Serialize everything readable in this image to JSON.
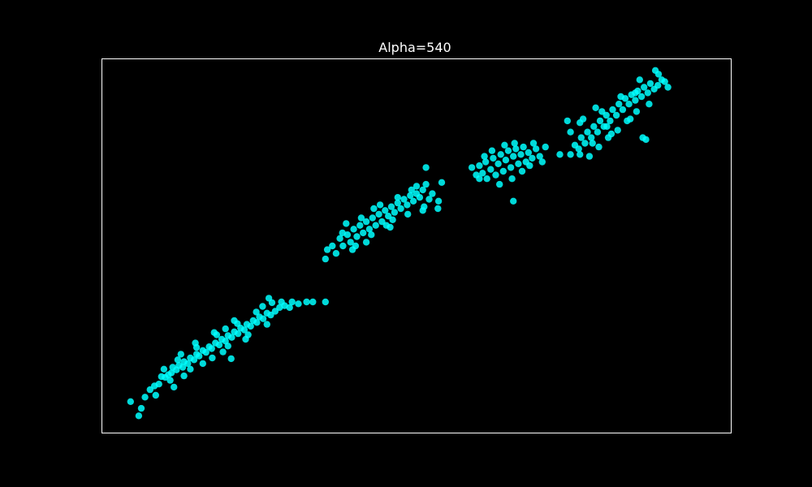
{
  "chart_data": {
    "type": "scatter",
    "title": "Alpha=540",
    "xlabel": "",
    "ylabel": "",
    "axes_ticks_visible": false,
    "grid": false,
    "background": "#000000",
    "frame_color": "#ffffff",
    "point_color": "#00ffff",
    "xlim": [
      0,
      1
    ],
    "ylim": [
      0,
      1
    ],
    "series": [
      {
        "clusters": [
          {
            "points": [
              [
                0.045,
                0.083
              ],
              [
                0.058,
                0.045
              ],
              [
                0.062,
                0.065
              ],
              [
                0.068,
                0.095
              ],
              [
                0.076,
                0.115
              ],
              [
                0.083,
                0.125
              ],
              [
                0.09,
                0.13
              ],
              [
                0.094,
                0.15
              ],
              [
                0.1,
                0.148
              ],
              [
                0.105,
                0.155
              ],
              [
                0.11,
                0.16
              ],
              [
                0.112,
                0.175
              ],
              [
                0.118,
                0.168
              ],
              [
                0.122,
                0.18
              ],
              [
                0.128,
                0.175
              ],
              [
                0.13,
                0.19
              ],
              [
                0.136,
                0.185
              ],
              [
                0.14,
                0.2
              ],
              [
                0.146,
                0.195
              ],
              [
                0.15,
                0.21
              ],
              [
                0.154,
                0.205
              ],
              [
                0.16,
                0.22
              ],
              [
                0.165,
                0.215
              ],
              [
                0.17,
                0.23
              ],
              [
                0.174,
                0.225
              ],
              [
                0.18,
                0.24
              ],
              [
                0.186,
                0.235
              ],
              [
                0.19,
                0.25
              ],
              [
                0.196,
                0.245
              ],
              [
                0.2,
                0.26
              ],
              [
                0.206,
                0.255
              ],
              [
                0.21,
                0.27
              ],
              [
                0.216,
                0.265
              ],
              [
                0.22,
                0.28
              ],
              [
                0.226,
                0.275
              ],
              [
                0.23,
                0.29
              ],
              [
                0.236,
                0.285
              ],
              [
                0.24,
                0.3
              ],
              [
                0.246,
                0.295
              ],
              [
                0.25,
                0.31
              ],
              [
                0.256,
                0.305
              ],
              [
                0.262,
                0.32
              ],
              [
                0.268,
                0.315
              ],
              [
                0.275,
                0.325
              ],
              [
                0.282,
                0.335
              ],
              [
                0.29,
                0.34
              ],
              [
                0.298,
                0.335
              ],
              [
                0.302,
                0.35
              ],
              [
                0.108,
                0.14
              ],
              [
                0.12,
                0.195
              ],
              [
                0.14,
                0.17
              ],
              [
                0.15,
                0.228
              ],
              [
                0.175,
                0.2
              ],
              [
                0.182,
                0.262
              ],
              [
                0.2,
                0.232
              ],
              [
                0.215,
                0.292
              ],
              [
                0.232,
                0.262
              ],
              [
                0.245,
                0.323
              ],
              [
                0.262,
                0.29
              ],
              [
                0.27,
                0.348
              ],
              [
                0.098,
                0.17
              ],
              [
                0.13,
                0.152
              ],
              [
                0.16,
                0.185
              ],
              [
                0.192,
                0.216
              ],
              [
                0.228,
                0.25
              ],
              [
                0.148,
                0.24
              ],
              [
                0.178,
                0.268
              ],
              [
                0.21,
                0.3
              ],
              [
                0.205,
                0.198
              ],
              [
                0.114,
                0.122
              ],
              [
                0.085,
                0.1
              ],
              [
                0.265,
                0.36
              ],
              [
                0.285,
                0.35
              ],
              [
                0.325,
                0.35
              ],
              [
                0.335,
                0.35
              ],
              [
                0.355,
                0.35
              ],
              [
                0.312,
                0.345
              ],
              [
                0.255,
                0.338
              ],
              [
                0.196,
                0.278
              ],
              [
                0.125,
                0.21
              ]
            ]
          },
          {
            "points": [
              [
                0.355,
                0.465
              ],
              [
                0.358,
                0.49
              ],
              [
                0.366,
                0.5
              ],
              [
                0.372,
                0.48
              ],
              [
                0.378,
                0.52
              ],
              [
                0.383,
                0.5
              ],
              [
                0.39,
                0.53
              ],
              [
                0.395,
                0.51
              ],
              [
                0.4,
                0.545
              ],
              [
                0.405,
                0.525
              ],
              [
                0.41,
                0.555
              ],
              [
                0.415,
                0.535
              ],
              [
                0.42,
                0.565
              ],
              [
                0.425,
                0.545
              ],
              [
                0.43,
                0.575
              ],
              [
                0.435,
                0.555
              ],
              [
                0.44,
                0.585
              ],
              [
                0.445,
                0.565
              ],
              [
                0.45,
                0.595
              ],
              [
                0.455,
                0.58
              ],
              [
                0.46,
                0.605
              ],
              [
                0.465,
                0.59
              ],
              [
                0.47,
                0.615
              ],
              [
                0.475,
                0.6
              ],
              [
                0.48,
                0.625
              ],
              [
                0.485,
                0.61
              ],
              [
                0.49,
                0.635
              ],
              [
                0.495,
                0.62
              ],
              [
                0.5,
                0.64
              ],
              [
                0.505,
                0.63
              ],
              [
                0.51,
                0.65
              ],
              [
                0.515,
                0.665
              ],
              [
                0.52,
                0.625
              ],
              [
                0.525,
                0.64
              ],
              [
                0.535,
                0.62
              ],
              [
                0.388,
                0.56
              ],
              [
                0.398,
                0.49
              ],
              [
                0.42,
                0.51
              ],
              [
                0.432,
                0.6
              ],
              [
                0.452,
                0.555
              ],
              [
                0.47,
                0.63
              ],
              [
                0.486,
                0.585
              ],
              [
                0.5,
                0.66
              ],
              [
                0.512,
                0.605
              ],
              [
                0.382,
                0.535
              ],
              [
                0.412,
                0.575
              ],
              [
                0.442,
                0.61
              ],
              [
                0.462,
                0.57
              ],
              [
                0.492,
                0.65
              ],
              [
                0.51,
                0.595
              ],
              [
                0.515,
                0.71
              ],
              [
                0.534,
                0.6
              ],
              [
                0.54,
                0.67
              ],
              [
                0.428,
                0.53
              ],
              [
                0.458,
                0.55
              ],
              [
                0.403,
                0.5
              ]
            ]
          },
          {
            "points": [
              [
                0.588,
                0.71
              ],
              [
                0.595,
                0.69
              ],
              [
                0.6,
                0.715
              ],
              [
                0.605,
                0.695
              ],
              [
                0.61,
                0.725
              ],
              [
                0.612,
                0.68
              ],
              [
                0.618,
                0.705
              ],
              [
                0.622,
                0.735
              ],
              [
                0.626,
                0.69
              ],
              [
                0.63,
                0.72
              ],
              [
                0.634,
                0.745
              ],
              [
                0.638,
                0.7
              ],
              [
                0.642,
                0.73
              ],
              [
                0.646,
                0.755
              ],
              [
                0.65,
                0.71
              ],
              [
                0.654,
                0.74
              ],
              [
                0.658,
                0.76
              ],
              [
                0.662,
                0.72
              ],
              [
                0.666,
                0.745
              ],
              [
                0.67,
                0.765
              ],
              [
                0.674,
                0.725
              ],
              [
                0.678,
                0.75
              ],
              [
                0.684,
                0.735
              ],
              [
                0.69,
                0.76
              ],
              [
                0.696,
                0.74
              ],
              [
                0.608,
                0.74
              ],
              [
                0.62,
                0.755
              ],
              [
                0.64,
                0.77
              ],
              [
                0.652,
                0.68
              ],
              [
                0.668,
                0.7
              ],
              [
                0.68,
                0.715
              ],
              [
                0.632,
                0.665
              ],
              [
                0.656,
                0.775
              ],
              [
                0.686,
                0.775
              ],
              [
                0.6,
                0.68
              ],
              [
                0.654,
                0.62
              ],
              [
                0.705,
                0.765
              ],
              [
                0.745,
                0.805
              ],
              [
                0.7,
                0.725
              ]
            ]
          },
          {
            "points": [
              [
                0.745,
                0.745
              ],
              [
                0.752,
                0.77
              ],
              [
                0.758,
                0.76
              ],
              [
                0.762,
                0.79
              ],
              [
                0.768,
                0.775
              ],
              [
                0.772,
                0.805
              ],
              [
                0.778,
                0.79
              ],
              [
                0.782,
                0.82
              ],
              [
                0.788,
                0.805
              ],
              [
                0.792,
                0.835
              ],
              [
                0.798,
                0.82
              ],
              [
                0.802,
                0.85
              ],
              [
                0.808,
                0.835
              ],
              [
                0.812,
                0.865
              ],
              [
                0.818,
                0.85
              ],
              [
                0.822,
                0.88
              ],
              [
                0.828,
                0.865
              ],
              [
                0.832,
                0.895
              ],
              [
                0.838,
                0.88
              ],
              [
                0.842,
                0.905
              ],
              [
                0.848,
                0.89
              ],
              [
                0.852,
                0.915
              ],
              [
                0.858,
                0.9
              ],
              [
                0.862,
                0.925
              ],
              [
                0.868,
                0.91
              ],
              [
                0.872,
                0.935
              ],
              [
                0.878,
                0.92
              ],
              [
                0.884,
                0.93
              ],
              [
                0.89,
                0.945
              ],
              [
                0.895,
                0.94
              ],
              [
                0.765,
                0.84
              ],
              [
                0.78,
                0.775
              ],
              [
                0.795,
                0.86
              ],
              [
                0.81,
                0.8
              ],
              [
                0.825,
                0.9
              ],
              [
                0.84,
                0.84
              ],
              [
                0.855,
                0.945
              ],
              [
                0.87,
                0.88
              ],
              [
                0.885,
                0.96
              ],
              [
                0.9,
                0.925
              ],
              [
                0.76,
                0.745
              ],
              [
                0.775,
                0.74
              ],
              [
                0.79,
                0.765
              ],
              [
                0.805,
                0.79
              ],
              [
                0.82,
                0.81
              ],
              [
                0.835,
                0.835
              ],
              [
                0.85,
                0.86
              ],
              [
                0.86,
                0.79
              ],
              [
                0.865,
                0.785
              ],
              [
                0.785,
                0.87
              ],
              [
                0.728,
                0.745
              ],
              [
                0.74,
                0.835
              ],
              [
                0.76,
                0.83
              ],
              [
                0.803,
                0.82
              ],
              [
                0.848,
                0.91
              ],
              [
                0.88,
                0.97
              ]
            ]
          }
        ]
      }
    ]
  }
}
